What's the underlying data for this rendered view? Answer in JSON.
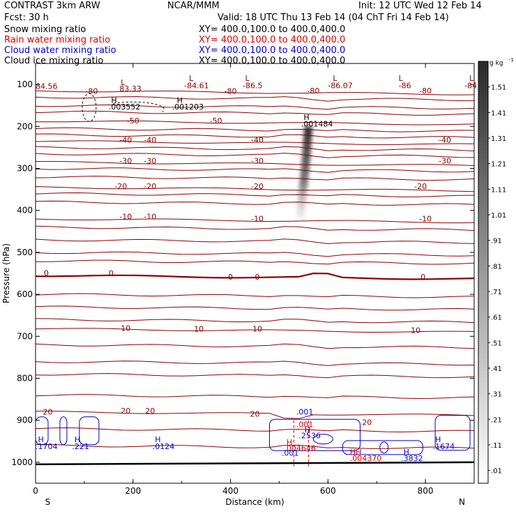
{
  "header": {
    "model": "CONTRAST   3km ARW",
    "org": "NCAR/MMM",
    "init": "Init: 12 UTC Wed 12 Feb 14",
    "fcst": "Fcst:    30 h",
    "valid": "Valid: 18 UTC Thu 13 Feb 14 (04 ChT Fri 14 Feb 14)"
  },
  "fields": [
    {
      "label": "Snow mixing ratio",
      "xy": "XY= 400.0,100.0 to 400.0,400.0",
      "color": "#000000"
    },
    {
      "label": "Rain water mixing ratio",
      "xy": "XY= 400.0,100.0 to 400.0,400.0",
      "color": "#dd0000"
    },
    {
      "label": "Cloud water mixing ratio",
      "xy": "XY= 400.0,100.0 to 400.0,400.0",
      "color": "#0000cc"
    },
    {
      "label": "Cloud ice mixing ratio",
      "xy": "XY= 400.0,100.0 to 400.0,400.0",
      "color": "#000000"
    }
  ],
  "chart_data": {
    "type": "heatmap",
    "xlabel": "Distance (km)",
    "ylabel": "Pressure (hPa)",
    "xlim": [
      0,
      900
    ],
    "ylim": [
      50,
      1050
    ],
    "x_ticks": [
      0,
      200,
      400,
      600,
      800
    ],
    "y_ticks": [
      100,
      200,
      300,
      400,
      500,
      600,
      700,
      800,
      900,
      1000
    ],
    "x_end_labels": {
      "left": "S",
      "right": "N"
    },
    "colorbar": {
      "units": "g kg",
      "units_exp": "-1",
      "levels": [
        "1.51",
        "1.41",
        "1.31",
        "1.21",
        "1.11",
        "1.01",
        ".91",
        ".81",
        ".71",
        ".61",
        ".51",
        ".41",
        ".31",
        ".21",
        ".11",
        ".01"
      ]
    },
    "temperature_contours": [
      {
        "value": -80,
        "label": "-80",
        "p": 115
      },
      {
        "value": -50,
        "label": "-50",
        "p": 187
      },
      {
        "value": -40,
        "label": "-40",
        "p": 235
      },
      {
        "value": -30,
        "label": "-30",
        "p": 285
      },
      {
        "value": -20,
        "label": "-20",
        "p": 345
      },
      {
        "value": -10,
        "label": "-10",
        "p": 420
      },
      {
        "value": 0,
        "label": "0",
        "p": 555
      },
      {
        "value": 10,
        "label": "10",
        "p": 682
      },
      {
        "value": 20,
        "label": "20",
        "p": 880
      }
    ],
    "temperature_labels": [
      {
        "text": "-80",
        "x": 115,
        "p": 116
      },
      {
        "text": "-80",
        "x": 400,
        "p": 116
      },
      {
        "text": "-80",
        "x": 570,
        "p": 115
      },
      {
        "text": "-80",
        "x": 800,
        "p": 115
      },
      {
        "text": "-50",
        "x": 200,
        "p": 186
      },
      {
        "text": "-50",
        "x": 370,
        "p": 186
      },
      {
        "text": "-40",
        "x": 185,
        "p": 232
      },
      {
        "text": "-40",
        "x": 235,
        "p": 232
      },
      {
        "text": "-40",
        "x": 455,
        "p": 232
      },
      {
        "text": "-40",
        "x": 840,
        "p": 232
      },
      {
        "text": "-30",
        "x": 185,
        "p": 282
      },
      {
        "text": "-30",
        "x": 235,
        "p": 282
      },
      {
        "text": "-30",
        "x": 455,
        "p": 282
      },
      {
        "text": "-30",
        "x": 840,
        "p": 282
      },
      {
        "text": "-20",
        "x": 175,
        "p": 342
      },
      {
        "text": "-20",
        "x": 235,
        "p": 342
      },
      {
        "text": "-20",
        "x": 455,
        "p": 342
      },
      {
        "text": "-20",
        "x": 790,
        "p": 342
      },
      {
        "text": "-10",
        "x": 185,
        "p": 415
      },
      {
        "text": "-10",
        "x": 235,
        "p": 415
      },
      {
        "text": "-10",
        "x": 455,
        "p": 420
      },
      {
        "text": "-10",
        "x": 800,
        "p": 420
      },
      {
        "text": "0",
        "x": 22,
        "p": 549
      },
      {
        "text": "0",
        "x": 155,
        "p": 549
      },
      {
        "text": "0",
        "x": 400,
        "p": 558
      },
      {
        "text": "0",
        "x": 455,
        "p": 558
      },
      {
        "text": "0",
        "x": 795,
        "p": 558
      },
      {
        "text": "10",
        "x": 185,
        "p": 680
      },
      {
        "text": "10",
        "x": 335,
        "p": 682
      },
      {
        "text": "10",
        "x": 455,
        "p": 682
      },
      {
        "text": "10",
        "x": 780,
        "p": 685
      },
      {
        "text": "20",
        "x": 25,
        "p": 880
      },
      {
        "text": "20",
        "x": 185,
        "p": 877
      },
      {
        "text": "20",
        "x": 235,
        "p": 877
      },
      {
        "text": "20",
        "x": 450,
        "p": 885
      },
      {
        "text": "20",
        "x": 680,
        "p": 905
      }
    ],
    "minmax_labels": [
      {
        "text": "L",
        "x": 175,
        "p": 95,
        "color": "#8b0000"
      },
      {
        "text": "84.56",
        "x": 0,
        "p": 104,
        "color": "#8b0000"
      },
      {
        "text": "83.33",
        "x": 172,
        "p": 110,
        "color": "#8b0000"
      },
      {
        "text": "L",
        "x": 315,
        "p": 85,
        "color": "#8b0000"
      },
      {
        "text": "-84.61",
        "x": 305,
        "p": 102,
        "color": "#8b0000"
      },
      {
        "text": "L",
        "x": 430,
        "p": 85,
        "color": "#8b0000"
      },
      {
        "text": "-86.5",
        "x": 425,
        "p": 102,
        "color": "#8b0000"
      },
      {
        "text": "L",
        "x": 610,
        "p": 85,
        "color": "#8b0000"
      },
      {
        "text": "-86.07",
        "x": 600,
        "p": 102,
        "color": "#8b0000"
      },
      {
        "text": "L",
        "x": 745,
        "p": 85,
        "color": "#8b0000"
      },
      {
        "text": "-86",
        "x": 745,
        "p": 102,
        "color": "#8b0000"
      },
      {
        "text": "L",
        "x": 890,
        "p": 85,
        "color": "#8b0000"
      },
      {
        "text": "-84",
        "x": 880,
        "p": 102,
        "color": "#8b0000"
      },
      {
        "text": "H",
        "x": 155,
        "p": 137,
        "color": "#000000"
      },
      {
        "text": ".003552",
        "x": 150,
        "p": 153,
        "color": "#000000"
      },
      {
        "text": "H",
        "x": 290,
        "p": 137,
        "color": "#000000"
      },
      {
        "text": ".001203",
        "x": 280,
        "p": 153,
        "color": "#000000"
      },
      {
        "text": "H",
        "x": 550,
        "p": 178,
        "color": "#000000"
      },
      {
        "text": ".001484",
        "x": 545,
        "p": 194,
        "color": "#000000"
      },
      {
        "text": ".001",
        "x": 535,
        "p": 880,
        "color": "#0000cc"
      },
      {
        "text": ".001",
        "x": 535,
        "p": 910,
        "color": "#dd0000"
      },
      {
        "text": "H",
        "x": 552,
        "p": 922,
        "color": "#0000cc"
      },
      {
        "text": ".2536",
        "x": 540,
        "p": 936,
        "color": "#0000cc"
      },
      {
        "text": "H",
        "x": 515,
        "p": 952,
        "color": "#dd0000"
      },
      {
        "text": ".004646",
        "x": 510,
        "p": 966,
        "color": "#dd0000"
      },
      {
        "text": ".001",
        "x": 505,
        "p": 978,
        "color": "#0000cc"
      },
      {
        "text": "H",
        "x": 5,
        "p": 945,
        "color": "#0000cc"
      },
      {
        "text": ".1704",
        "x": 0,
        "p": 962,
        "color": "#0000cc"
      },
      {
        "text": "H",
        "x": 80,
        "p": 945,
        "color": "#0000cc"
      },
      {
        "text": ".221",
        "x": 75,
        "p": 962,
        "color": "#0000cc"
      },
      {
        "text": "H",
        "x": 245,
        "p": 945,
        "color": "#0000cc"
      },
      {
        "text": ".0124",
        "x": 240,
        "p": 962,
        "color": "#0000cc"
      },
      {
        "text": "HH",
        "x": 645,
        "p": 975,
        "color": "#dd0000"
      },
      {
        "text": ".004370",
        "x": 645,
        "p": 990,
        "color": "#dd0000"
      },
      {
        "text": "H",
        "x": 755,
        "p": 975,
        "color": "#0000cc"
      },
      {
        "text": ".3832",
        "x": 750,
        "p": 990,
        "color": "#0000cc"
      },
      {
        "text": "H",
        "x": 820,
        "p": 945,
        "color": "#0000cc"
      },
      {
        "text": ".1674",
        "x": 815,
        "p": 962,
        "color": "#0000cc"
      }
    ],
    "snow_plume": [
      {
        "x": 560,
        "p": 200
      },
      {
        "x": 555,
        "p": 280
      },
      {
        "x": 548,
        "p": 360
      },
      {
        "x": 543,
        "p": 420
      }
    ]
  }
}
